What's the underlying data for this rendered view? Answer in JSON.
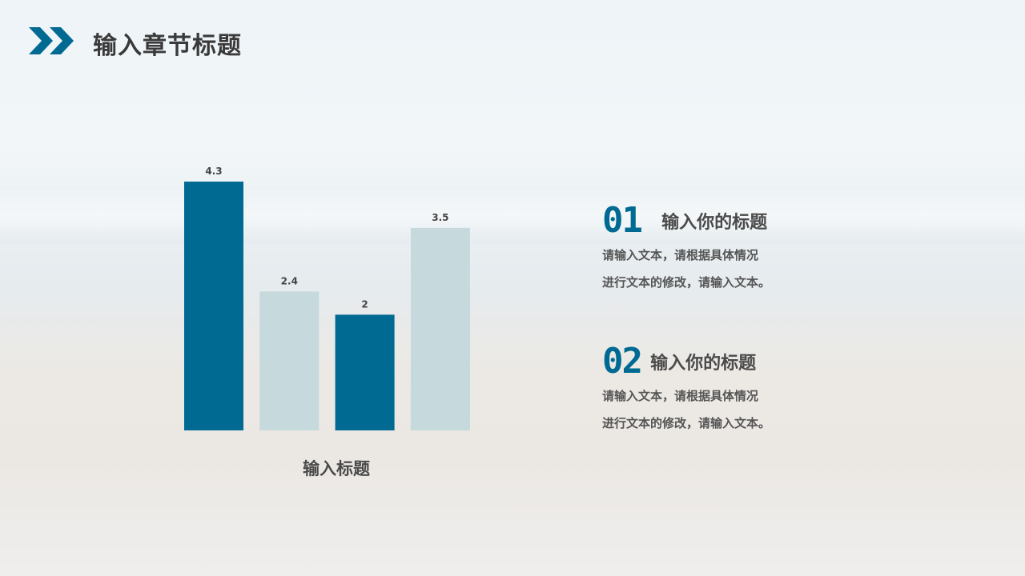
{
  "header": {
    "title": "输入章节标题",
    "icon": "double-chevron-right-icon",
    "accent": "#006a92"
  },
  "chart_data": {
    "type": "bar",
    "categories": [
      "",
      "",
      "",
      ""
    ],
    "values": [
      4.3,
      2.4,
      2,
      3.5
    ],
    "data_labels": [
      "4.3",
      "2.4",
      "2",
      "3.5"
    ],
    "colors": [
      "#006a92",
      "#c6d9dc",
      "#006a92",
      "#c6d9dc"
    ],
    "xlabel": "输入标题",
    "ylim": [
      0,
      4.3
    ],
    "grid": false
  },
  "items": [
    {
      "number": "01",
      "title": "输入你的标题",
      "lines": [
        "请输入文本，请根据具体情况",
        "进行文本的修改，请输入文本。"
      ]
    },
    {
      "number": "02",
      "title": "输入你的标题",
      "lines": [
        "请输入文本，请根据具体情况",
        "进行文本的修改，请输入文本。"
      ]
    }
  ]
}
